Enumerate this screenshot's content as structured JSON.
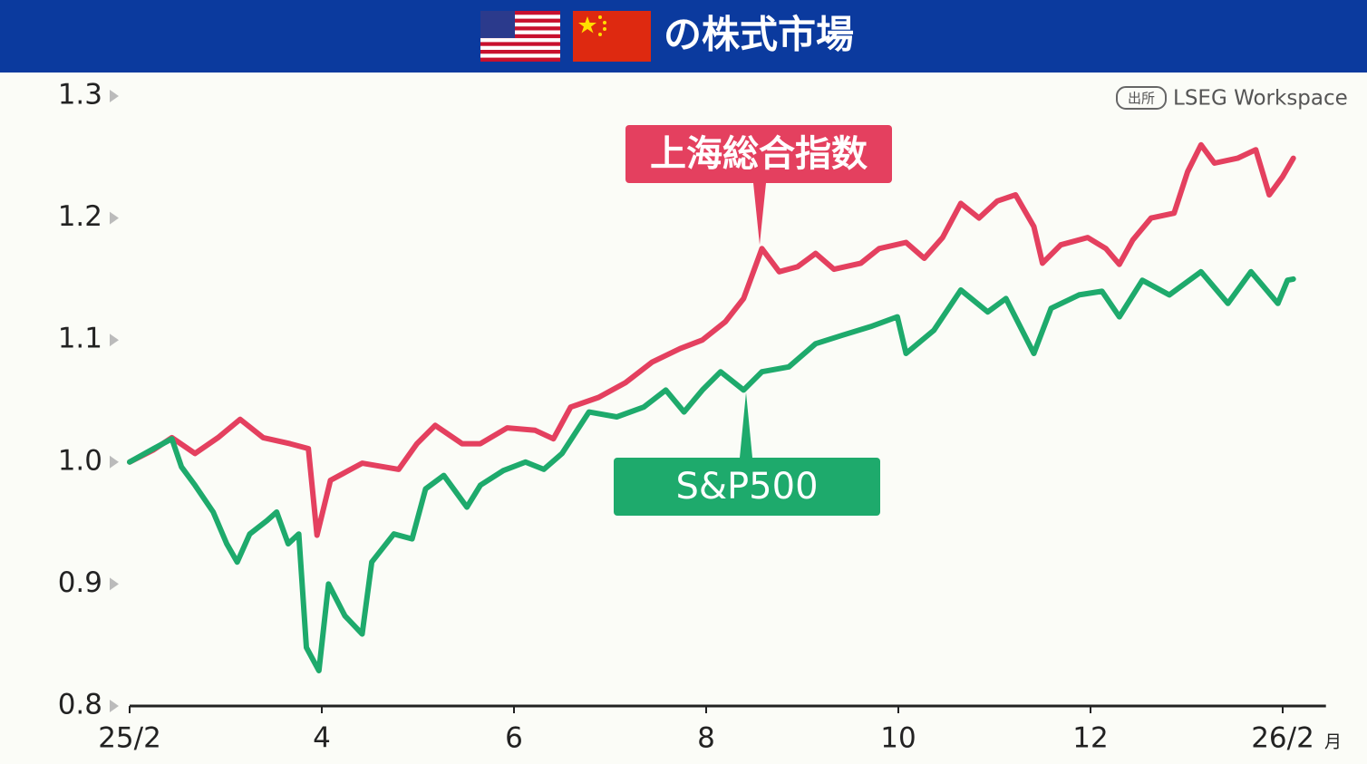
{
  "chart_data": {
    "type": "line",
    "title": "の株式市場",
    "source_label": "出所",
    "source": "LSEG Workspace",
    "x_unit": "月",
    "xlim": [
      0,
      12.45
    ],
    "ylim": [
      0.8,
      1.3
    ],
    "xticks": [
      {
        "value": 0,
        "label": "25/2"
      },
      {
        "value": 2,
        "label": "4"
      },
      {
        "value": 4,
        "label": "6"
      },
      {
        "value": 6,
        "label": "8"
      },
      {
        "value": 8,
        "label": "10"
      },
      {
        "value": 10,
        "label": "12"
      },
      {
        "value": 12,
        "label": "26/2"
      }
    ],
    "yticks": [
      0.8,
      0.9,
      {
        "value": 1,
        "label": "1.0"
      },
      1.1,
      1.2,
      1.3
    ],
    "series": [
      {
        "name": "上海総合指数",
        "color": "#e4405f",
        "x": [
          0,
          0.25,
          0.44,
          0.68,
          0.92,
          1.15,
          1.39,
          1.67,
          1.86,
          1.95,
          2.09,
          2.42,
          2.8,
          2.99,
          3.18,
          3.46,
          3.65,
          3.93,
          4.22,
          4.41,
          4.59,
          4.88,
          5.16,
          5.44,
          5.73,
          5.96,
          6.2,
          6.39,
          6.58,
          6.76,
          6.95,
          7.14,
          7.33,
          7.61,
          7.8,
          8.08,
          8.27,
          8.46,
          8.65,
          8.84,
          9.03,
          9.22,
          9.41,
          9.5,
          9.69,
          9.97,
          10.16,
          10.3,
          10.44,
          10.63,
          10.87,
          11.01,
          11.15,
          11.29,
          11.53,
          11.72,
          11.86,
          12.0,
          12.11
        ],
        "values": [
          1.0,
          1.01,
          1.02,
          1.007,
          1.02,
          1.035,
          1.02,
          1.015,
          1.011,
          0.94,
          0.985,
          0.999,
          0.994,
          1.015,
          1.03,
          1.015,
          1.015,
          1.028,
          1.026,
          1.019,
          1.045,
          1.053,
          1.065,
          1.082,
          1.093,
          1.1,
          1.115,
          1.134,
          1.175,
          1.156,
          1.16,
          1.171,
          1.158,
          1.163,
          1.175,
          1.18,
          1.167,
          1.184,
          1.212,
          1.2,
          1.214,
          1.219,
          1.193,
          1.163,
          1.178,
          1.184,
          1.175,
          1.162,
          1.182,
          1.2,
          1.204,
          1.238,
          1.26,
          1.245,
          1.249,
          1.256,
          1.219,
          1.234,
          1.249
        ]
      },
      {
        "name": "S&P500",
        "color": "#1eaa6c",
        "x": [
          0,
          0.25,
          0.44,
          0.54,
          0.68,
          0.87,
          1.01,
          1.12,
          1.25,
          1.43,
          1.53,
          1.65,
          1.76,
          1.84,
          1.97,
          2.07,
          2.24,
          2.42,
          2.52,
          2.75,
          2.94,
          3.08,
          3.27,
          3.51,
          3.65,
          3.89,
          4.12,
          4.31,
          4.5,
          4.78,
          5.07,
          5.35,
          5.58,
          5.77,
          5.96,
          6.15,
          6.39,
          6.58,
          6.86,
          7.14,
          7.42,
          7.71,
          7.99,
          8.08,
          8.37,
          8.65,
          8.93,
          9.12,
          9.41,
          9.59,
          9.88,
          10.12,
          10.3,
          10.54,
          10.82,
          11.15,
          11.43,
          11.67,
          11.95,
          12.05,
          12.11
        ],
        "values": [
          1.0,
          1.011,
          1.019,
          0.996,
          0.981,
          0.959,
          0.933,
          0.918,
          0.941,
          0.952,
          0.959,
          0.933,
          0.941,
          0.848,
          0.829,
          0.9,
          0.874,
          0.859,
          0.918,
          0.941,
          0.937,
          0.978,
          0.989,
          0.963,
          0.981,
          0.993,
          1.0,
          0.994,
          1.007,
          1.041,
          1.037,
          1.045,
          1.059,
          1.041,
          1.059,
          1.074,
          1.059,
          1.074,
          1.078,
          1.097,
          1.104,
          1.111,
          1.119,
          1.089,
          1.108,
          1.141,
          1.123,
          1.134,
          1.089,
          1.126,
          1.137,
          1.14,
          1.119,
          1.149,
          1.137,
          1.156,
          1.13,
          1.156,
          1.13,
          1.149,
          1.15
        ]
      }
    ]
  }
}
